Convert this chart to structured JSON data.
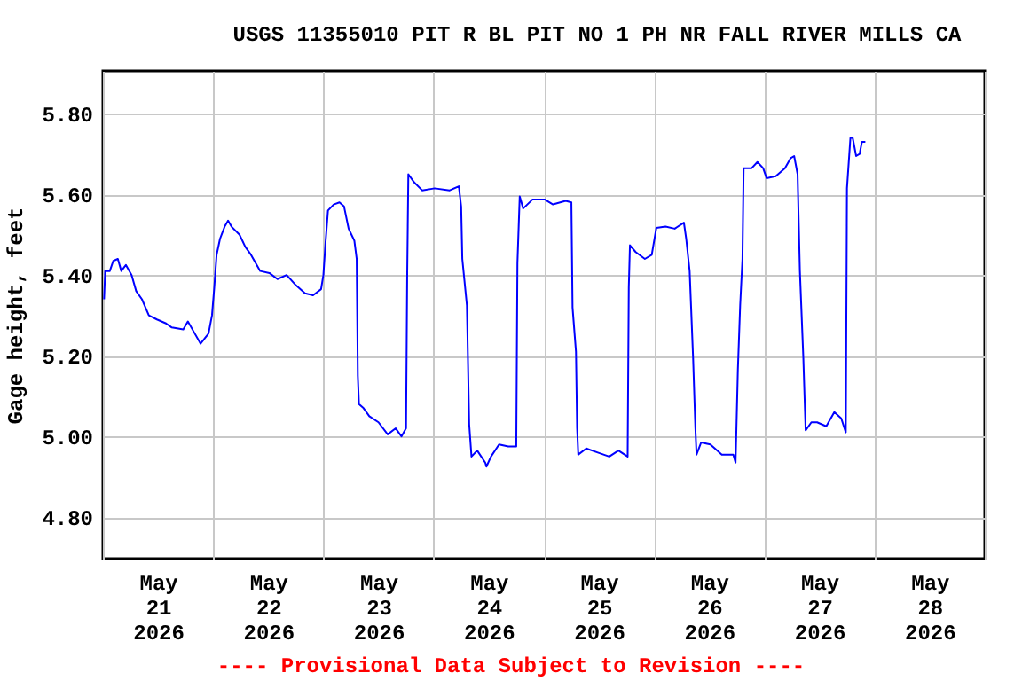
{
  "chart_data": {
    "type": "line",
    "title": "USGS 11355010 PIT R BL PIT NO 1 PH NR FALL RIVER MILLS CA",
    "ylabel": "Gage height, feet",
    "annotations": [
      "---- Provisional Data Subject to Revision ----"
    ],
    "x": [
      "2026-05-21T00:15",
      "2026-05-21T00:30",
      "2026-05-21T01:30",
      "2026-05-21T02:15",
      "2026-05-21T03:15",
      "2026-05-21T04:00",
      "2026-05-21T05:00",
      "2026-05-21T06:15",
      "2026-05-21T07:15",
      "2026-05-21T08:30",
      "2026-05-21T10:00",
      "2026-05-21T11:45",
      "2026-05-21T13:45",
      "2026-05-21T15:00",
      "2026-05-21T17:30",
      "2026-05-21T18:30",
      "2026-05-21T19:45",
      "2026-05-21T21:15",
      "2026-05-21T23:00",
      "2026-05-21T23:45",
      "2026-05-22T00:15",
      "2026-05-22T00:45",
      "2026-05-22T01:30",
      "2026-05-22T02:30",
      "2026-05-22T03:15",
      "2026-05-22T04:00",
      "2026-05-22T05:45",
      "2026-05-22T07:00",
      "2026-05-22T08:15",
      "2026-05-22T10:15",
      "2026-05-22T12:15",
      "2026-05-22T14:00",
      "2026-05-22T16:00",
      "2026-05-22T18:00",
      "2026-05-22T20:00",
      "2026-05-22T21:45",
      "2026-05-22T23:30",
      "2026-05-23T00:00",
      "2026-05-23T00:30",
      "2026-05-23T01:00",
      "2026-05-23T02:15",
      "2026-05-23T03:30",
      "2026-05-23T04:30",
      "2026-05-23T05:30",
      "2026-05-23T06:45",
      "2026-05-23T07:15",
      "2026-05-23T07:30",
      "2026-05-23T07:45",
      "2026-05-23T08:45",
      "2026-05-23T10:00",
      "2026-05-23T12:00",
      "2026-05-23T14:00",
      "2026-05-23T15:45",
      "2026-05-23T17:00",
      "2026-05-23T18:00",
      "2026-05-23T18:15",
      "2026-05-23T18:30",
      "2026-05-23T19:45",
      "2026-05-23T21:30",
      "2026-05-24T00:15",
      "2026-05-24T03:30",
      "2026-05-24T05:30",
      "2026-05-24T06:00",
      "2026-05-24T06:15",
      "2026-05-24T07:15",
      "2026-05-24T07:45",
      "2026-05-24T08:15",
      "2026-05-24T09:30",
      "2026-05-24T11:15",
      "2026-05-24T11:30",
      "2026-05-24T12:30",
      "2026-05-24T14:15",
      "2026-05-24T16:15",
      "2026-05-24T18:00",
      "2026-05-24T18:15",
      "2026-05-24T18:45",
      "2026-05-24T19:30",
      "2026-05-24T21:30",
      "2026-05-25T00:15",
      "2026-05-25T02:00",
      "2026-05-25T04:45",
      "2026-05-25T06:00",
      "2026-05-25T06:15",
      "2026-05-25T07:00",
      "2026-05-25T07:15",
      "2026-05-25T07:30",
      "2026-05-25T09:15",
      "2026-05-25T11:45",
      "2026-05-25T14:15",
      "2026-05-25T16:15",
      "2026-05-25T18:15",
      "2026-05-25T18:30",
      "2026-05-25T18:45",
      "2026-05-25T20:00",
      "2026-05-25T22:00",
      "2026-05-25T23:30",
      "2026-05-26T00:30",
      "2026-05-26T02:30",
      "2026-05-26T04:30",
      "2026-05-26T06:30",
      "2026-05-26T07:00",
      "2026-05-26T07:45",
      "2026-05-26T08:30",
      "2026-05-26T09:00",
      "2026-05-26T09:15",
      "2026-05-26T10:15",
      "2026-05-26T12:15",
      "2026-05-26T14:45",
      "2026-05-26T17:15",
      "2026-05-26T17:45",
      "2026-05-26T18:15",
      "2026-05-26T18:45",
      "2026-05-26T19:15",
      "2026-05-26T19:30",
      "2026-05-26T21:15",
      "2026-05-26T22:30",
      "2026-05-26T23:45",
      "2026-05-27T00:30",
      "2026-05-27T02:30",
      "2026-05-27T04:30",
      "2026-05-27T05:45",
      "2026-05-27T06:30",
      "2026-05-27T07:15",
      "2026-05-27T07:45",
      "2026-05-27T08:30",
      "2026-05-27T09:00",
      "2026-05-27T10:15",
      "2026-05-27T11:30",
      "2026-05-27T13:30",
      "2026-05-27T15:15",
      "2026-05-27T16:45",
      "2026-05-27T17:45",
      "2026-05-27T18:00",
      "2026-05-27T18:45",
      "2026-05-27T19:15",
      "2026-05-27T20:00",
      "2026-05-27T20:45",
      "2026-05-27T21:15",
      "2026-05-27T22:00"
    ],
    "series": [
      {
        "color": "#0000ff",
        "values": [
          5.34,
          5.41,
          5.41,
          5.435,
          5.44,
          5.41,
          5.425,
          5.4,
          5.36,
          5.34,
          5.3,
          5.29,
          5.28,
          5.27,
          5.265,
          5.285,
          5.26,
          5.23,
          5.255,
          5.3,
          5.37,
          5.45,
          5.49,
          5.52,
          5.535,
          5.52,
          5.5,
          5.47,
          5.45,
          5.41,
          5.405,
          5.39,
          5.4,
          5.375,
          5.355,
          5.35,
          5.365,
          5.4,
          5.485,
          5.56,
          5.575,
          5.58,
          5.57,
          5.515,
          5.485,
          5.44,
          5.15,
          5.08,
          5.07,
          5.05,
          5.035,
          5.005,
          5.02,
          5.0,
          5.02,
          5.4,
          5.65,
          5.63,
          5.61,
          5.615,
          5.61,
          5.62,
          5.57,
          5.44,
          5.325,
          5.03,
          4.95,
          4.965,
          4.935,
          4.925,
          4.95,
          4.98,
          4.975,
          4.975,
          5.43,
          5.595,
          5.565,
          5.587,
          5.587,
          5.575,
          5.584,
          5.58,
          5.32,
          5.21,
          5.02,
          4.955,
          4.97,
          4.96,
          4.95,
          4.965,
          4.95,
          5.37,
          5.474,
          5.457,
          5.44,
          5.45,
          5.517,
          5.52,
          5.515,
          5.53,
          5.49,
          5.41,
          5.195,
          5.02,
          4.955,
          4.985,
          4.98,
          4.955,
          4.955,
          4.935,
          5.165,
          5.325,
          5.44,
          5.665,
          5.665,
          5.68,
          5.665,
          5.64,
          5.645,
          5.665,
          5.69,
          5.695,
          5.65,
          5.41,
          5.195,
          5.015,
          5.035,
          5.035,
          5.025,
          5.06,
          5.045,
          5.01,
          5.615,
          5.74,
          5.74,
          5.695,
          5.7,
          5.73,
          5.73
        ]
      }
    ],
    "xlim": [
      "2026-05-21T00:00",
      "2026-05-29T00:00"
    ],
    "xticks": [
      {
        "value": "2026-05-21T00:00",
        "label": null
      },
      {
        "value": "2026-05-22T00:00",
        "label": null
      },
      {
        "value": "2026-05-23T00:00",
        "label": null
      },
      {
        "value": "2026-05-24T00:00",
        "label": null
      },
      {
        "value": "2026-05-25T00:00",
        "label": null
      },
      {
        "value": "2026-05-26T00:00",
        "label": null
      },
      {
        "value": "2026-05-27T00:00",
        "label": null
      },
      {
        "value": "2026-05-28T00:00",
        "label": null
      },
      {
        "value": "2026-05-29T00:00",
        "label": null
      },
      {
        "value": "2026-05-21T12:00",
        "label": "May 21 2026"
      },
      {
        "value": "2026-05-22T12:00",
        "label": "May 22 2026"
      },
      {
        "value": "2026-05-23T12:00",
        "label": "May 23 2026"
      },
      {
        "value": "2026-05-24T12:00",
        "label": "May 24 2026"
      },
      {
        "value": "2026-05-25T12:00",
        "label": "May 25 2026"
      },
      {
        "value": "2026-05-26T12:00",
        "label": "May 26 2026"
      },
      {
        "value": "2026-05-27T12:00",
        "label": "May 27 2026"
      },
      {
        "value": "2026-05-28T12:00",
        "label": "May 28 2026"
      }
    ],
    "ylim": [
      4.697,
      5.906
    ],
    "yticks": [
      {
        "value": 4.8,
        "label": "4.80"
      },
      {
        "value": 5.0,
        "label": "5.00"
      },
      {
        "value": 5.2,
        "label": "5.20"
      },
      {
        "value": 5.4,
        "label": "5.40"
      },
      {
        "value": 5.6,
        "label": "5.60"
      },
      {
        "value": 5.8,
        "label": "5.80"
      }
    ],
    "grid": true
  }
}
